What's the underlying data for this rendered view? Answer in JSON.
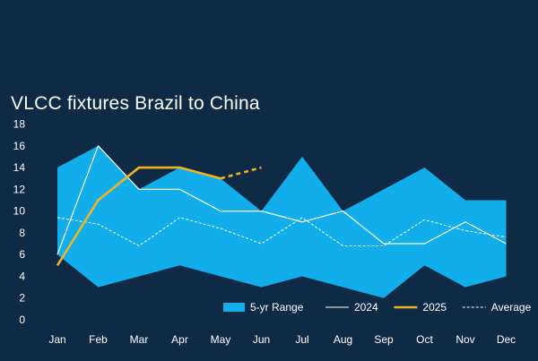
{
  "chart_data": {
    "type": "area",
    "title": "VLCC fixtures Brazil to China",
    "xlabel": "",
    "ylabel": "",
    "categories": [
      "Jan",
      "Feb",
      "Mar",
      "Apr",
      "May",
      "Jun",
      "Jul",
      "Aug",
      "Sep",
      "Oct",
      "Nov",
      "Dec"
    ],
    "ylim": [
      0,
      18
    ],
    "yticks": [
      0,
      2,
      4,
      6,
      8,
      10,
      12,
      14,
      16,
      18
    ],
    "grid": false,
    "legend_position": "bottom-right",
    "series": [
      {
        "name": "5-yr Range",
        "kind": "range",
        "color": "#12adeb",
        "upper": [
          14,
          16,
          12,
          14,
          13,
          10,
          15,
          10,
          12,
          14,
          11,
          11
        ],
        "lower": [
          6,
          3,
          4,
          5,
          4,
          3,
          4,
          3,
          2,
          5,
          3,
          4
        ]
      },
      {
        "name": "2024",
        "kind": "line",
        "color": "#ffffff",
        "values": [
          6,
          16,
          12,
          12,
          10,
          10,
          9,
          10,
          7,
          7,
          9,
          7
        ]
      },
      {
        "name": "2025",
        "kind": "line",
        "color": "#f0b323",
        "values": [
          5,
          11,
          14,
          14,
          13,
          null,
          null,
          null,
          null,
          null,
          null,
          null
        ],
        "projection": [
          null,
          null,
          null,
          null,
          13,
          14,
          null,
          null,
          null,
          null,
          null,
          null
        ]
      },
      {
        "name": "Average",
        "kind": "dashed",
        "color": "#ffffff",
        "values": [
          9.4,
          8.8,
          6.8,
          9.4,
          8.4,
          7.0,
          9.4,
          6.8,
          6.8,
          9.2,
          8.2,
          7.6
        ]
      }
    ]
  }
}
